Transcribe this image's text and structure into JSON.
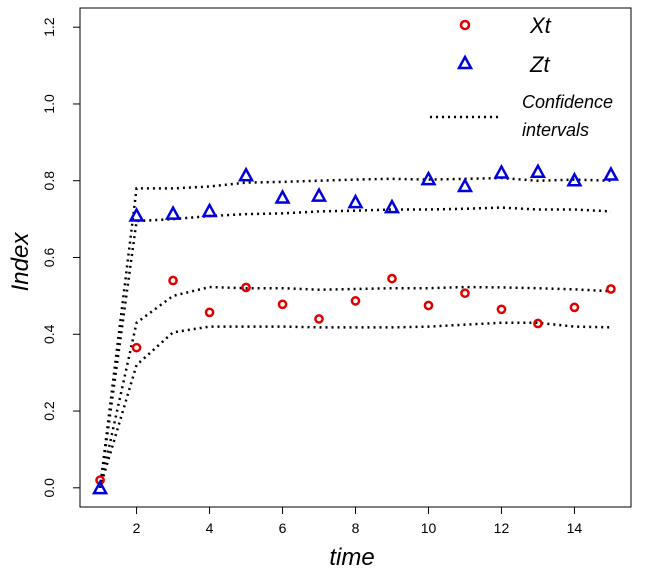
{
  "chart_data": {
    "type": "scatter",
    "title": "",
    "xlabel": "time",
    "ylabel": "Index",
    "xlim": [
      0.45,
      15.55
    ],
    "ylim": [
      -0.05,
      1.25
    ],
    "xticks": [
      2,
      4,
      6,
      8,
      10,
      12,
      14
    ],
    "yticks": [
      0.0,
      0.2,
      0.4,
      0.6,
      0.8,
      1.0,
      1.2
    ],
    "ytick_labels": [
      "0.0",
      "0.2",
      "0.4",
      "0.6",
      "0.8",
      "1.0",
      "1.2"
    ],
    "grid": false,
    "legend_position": "top-right",
    "series": [
      {
        "name": "Xt",
        "marker": "circle",
        "color": "#e00000",
        "x": [
          1,
          2,
          3,
          4,
          5,
          6,
          7,
          8,
          9,
          10,
          11,
          12,
          13,
          14,
          15
        ],
        "values": [
          0.02,
          0.365,
          0.54,
          0.457,
          0.522,
          0.478,
          0.44,
          0.487,
          0.545,
          0.475,
          0.507,
          0.465,
          0.428,
          0.47,
          0.518
        ]
      },
      {
        "name": "Zt",
        "marker": "triangle",
        "color": "#0000dd",
        "x": [
          1,
          2,
          3,
          4,
          5,
          6,
          7,
          8,
          9,
          10,
          11,
          12,
          13,
          14,
          15
        ],
        "values": [
          -0.002,
          0.708,
          0.713,
          0.72,
          0.813,
          0.755,
          0.76,
          0.743,
          0.73,
          0.803,
          0.785,
          0.82,
          0.822,
          0.8,
          0.815
        ]
      }
    ],
    "confidence_intervals": {
      "name": "Confidence intervals",
      "x": [
        1,
        2,
        3,
        4,
        5,
        6,
        7,
        8,
        9,
        10,
        11,
        12,
        13,
        14,
        15
      ],
      "Z_upper": [
        0.0,
        0.78,
        0.78,
        0.785,
        0.795,
        0.797,
        0.8,
        0.803,
        0.805,
        0.803,
        0.805,
        0.807,
        0.8,
        0.803,
        0.8
      ],
      "Z_lower": [
        0.0,
        0.695,
        0.7,
        0.708,
        0.713,
        0.715,
        0.72,
        0.722,
        0.725,
        0.725,
        0.727,
        0.73,
        0.725,
        0.725,
        0.72
      ],
      "X_upper": [
        0.0,
        0.43,
        0.5,
        0.523,
        0.52,
        0.52,
        0.516,
        0.518,
        0.52,
        0.52,
        0.523,
        0.522,
        0.52,
        0.517,
        0.512
      ],
      "X_lower": [
        0.0,
        0.32,
        0.405,
        0.42,
        0.42,
        0.42,
        0.418,
        0.418,
        0.418,
        0.42,
        0.425,
        0.43,
        0.43,
        0.42,
        0.418
      ]
    },
    "legend": {
      "xt_label": "Xt",
      "zt_label": "Zt",
      "ci_label_line1": "Confidence",
      "ci_label_line2": "intervals"
    }
  }
}
